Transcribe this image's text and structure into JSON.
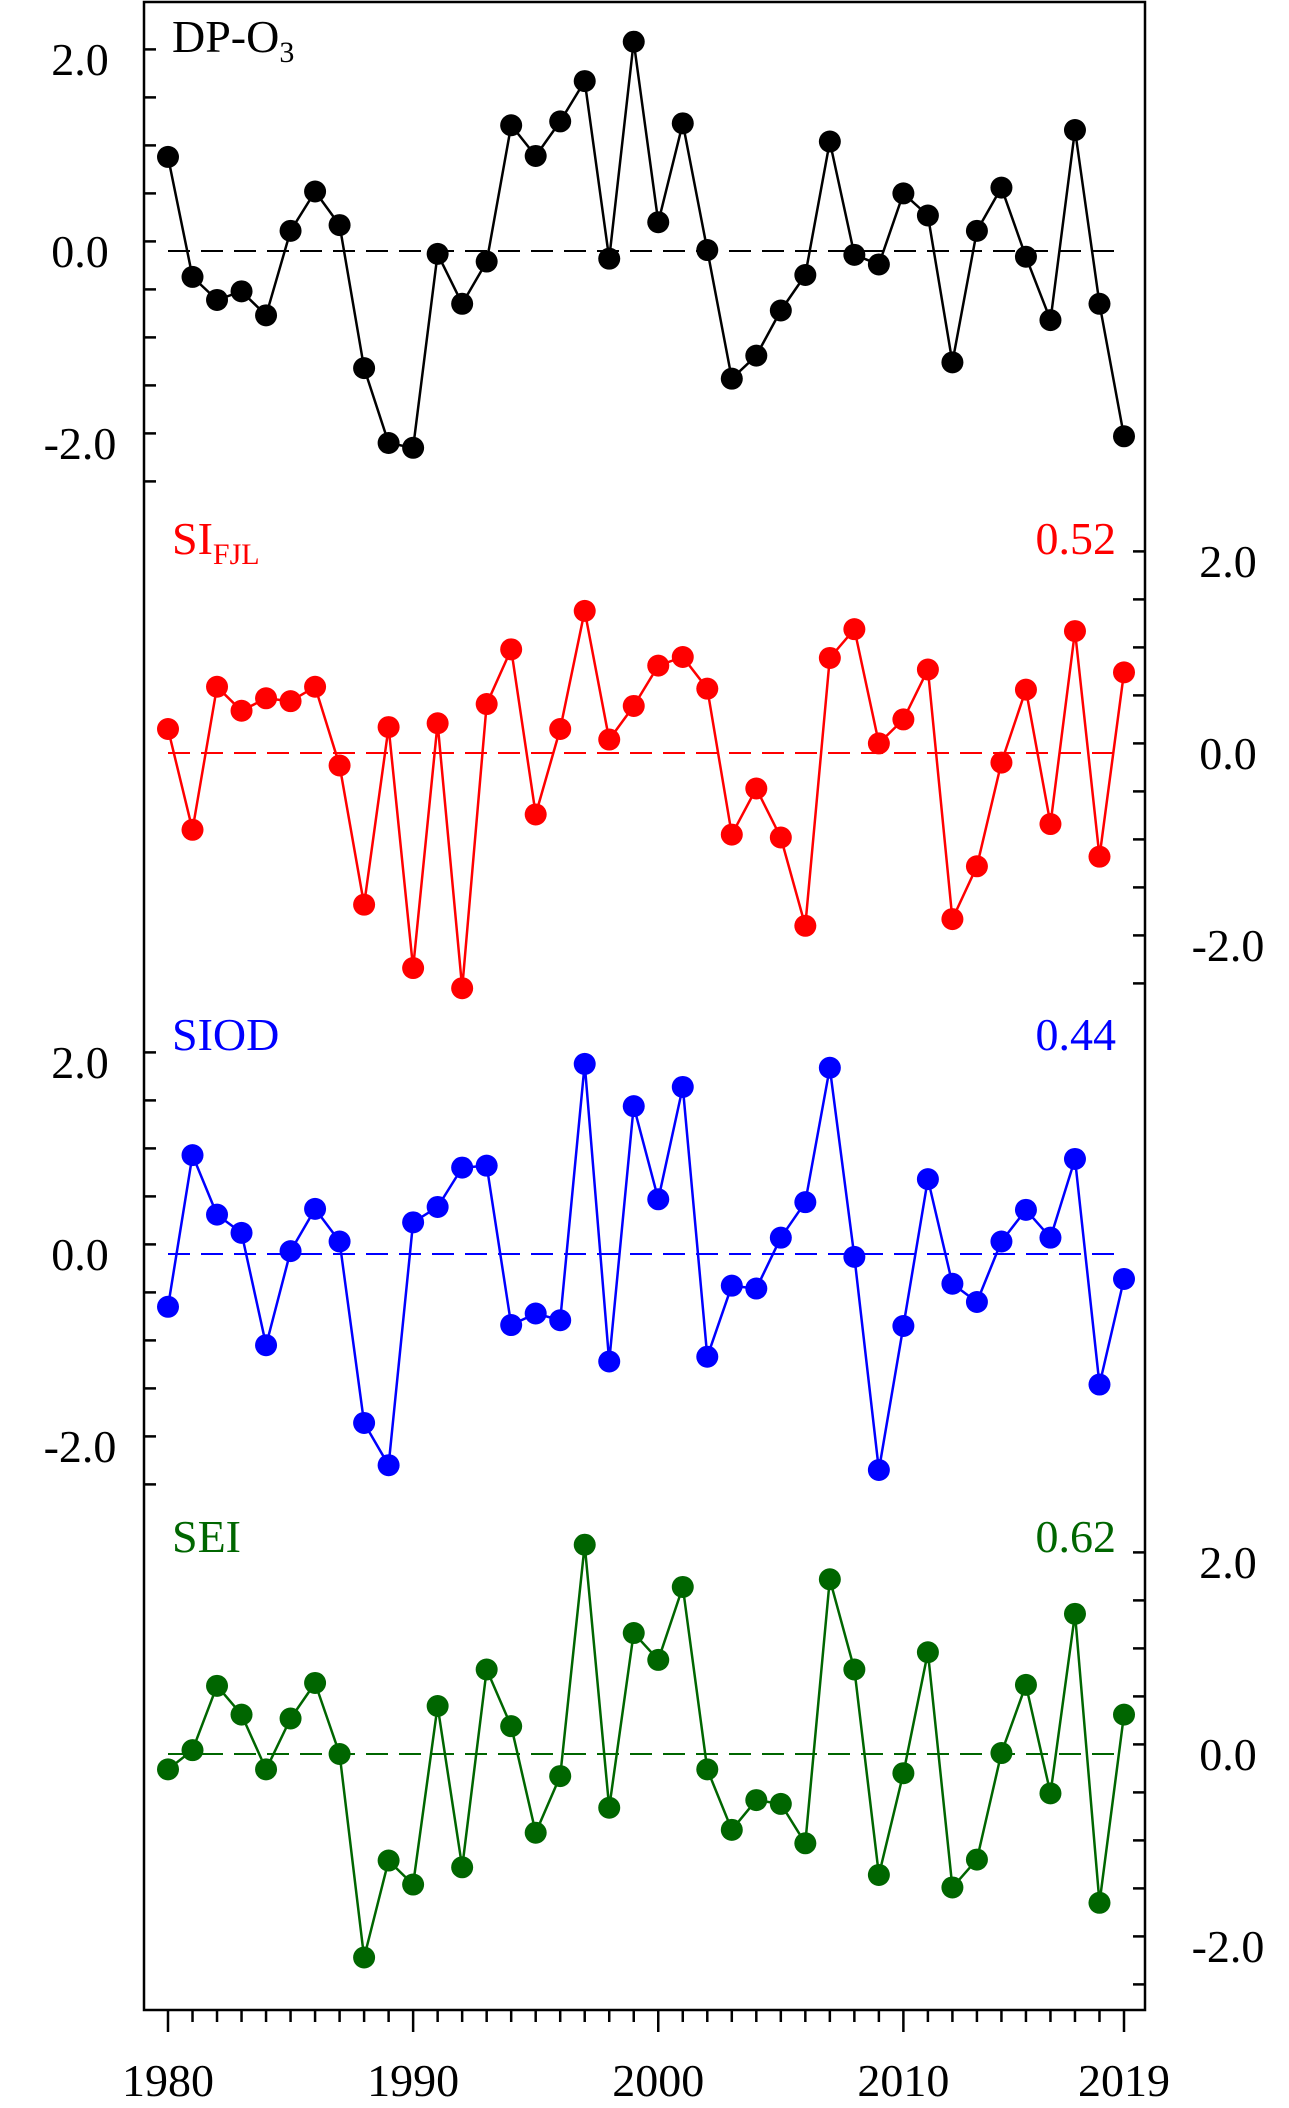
{
  "chart_data": {
    "type": "line",
    "x": [
      1980,
      1981,
      1982,
      1983,
      1984,
      1985,
      1986,
      1987,
      1988,
      1989,
      1990,
      1991,
      1992,
      1993,
      1994,
      1995,
      1996,
      1997,
      1998,
      1999,
      2000,
      2001,
      2002,
      2003,
      2004,
      2005,
      2006,
      2007,
      2008,
      2009,
      2010,
      2011,
      2012,
      2013,
      2014,
      2015,
      2016,
      2017,
      2018,
      2019
    ],
    "xlim": [
      1980,
      2019
    ],
    "xticks": [
      1980,
      1990,
      2000,
      2010,
      2019
    ],
    "xtick_labels": [
      "1980",
      "1990",
      "2000",
      "2010",
      "2019"
    ],
    "grid": false,
    "legend": "none",
    "series": [
      {
        "name": "DP-O",
        "name_subscript": "3",
        "color": "#000000",
        "axis_side": "left",
        "ylim": [
          -2.4,
          2.4
        ],
        "yticks": [
          2.0,
          0.0,
          -2.0
        ],
        "ytick_labels": [
          "2.0",
          "0.0",
          "-2.0"
        ],
        "correlation": "",
        "values": [
          0.98,
          -0.27,
          -0.51,
          -0.42,
          -0.67,
          0.21,
          0.62,
          0.27,
          -1.22,
          -2.0,
          -2.05,
          -0.03,
          -0.55,
          -0.11,
          1.31,
          0.99,
          1.35,
          1.77,
          -0.08,
          2.18,
          0.3,
          1.33,
          0.01,
          -1.33,
          -1.09,
          -0.62,
          -0.25,
          1.14,
          -0.04,
          -0.14,
          0.6,
          0.37,
          -1.16,
          0.21,
          0.66,
          -0.06,
          -0.72,
          1.26,
          -0.55,
          -1.93
        ]
      },
      {
        "name": "SI",
        "name_subscript": "FJL",
        "color": "#ff0000",
        "axis_side": "right",
        "ylim": [
          -2.4,
          2.4
        ],
        "yticks": [
          2.0,
          0.0,
          -2.0
        ],
        "ytick_labels": [
          "2.0",
          "0.0",
          "-2.0"
        ],
        "correlation": "0.52",
        "values": [
          0.25,
          -0.8,
          0.69,
          0.44,
          0.57,
          0.54,
          0.69,
          -0.13,
          -1.58,
          0.27,
          -2.24,
          0.31,
          -2.45,
          0.51,
          1.08,
          -0.64,
          0.25,
          1.48,
          0.14,
          0.49,
          0.91,
          1.0,
          0.67,
          -0.85,
          -0.37,
          -0.88,
          -1.8,
          0.99,
          1.29,
          0.1,
          0.35,
          0.87,
          -1.73,
          -1.18,
          -0.1,
          0.66,
          -0.74,
          1.27,
          -1.08,
          0.84
        ]
      },
      {
        "name": "SIOD",
        "name_subscript": "",
        "color": "#0000ff",
        "axis_side": "left",
        "ylim": [
          -2.4,
          2.4
        ],
        "yticks": [
          2.0,
          0.0,
          -2.0
        ],
        "ytick_labels": [
          "2.0",
          "0.0",
          "-2.0"
        ],
        "correlation": "0.44",
        "values": [
          -0.55,
          1.03,
          0.41,
          0.22,
          -0.95,
          0.03,
          0.47,
          0.13,
          -1.76,
          -2.2,
          0.33,
          0.49,
          0.9,
          0.92,
          -0.74,
          -0.62,
          -0.69,
          1.98,
          -1.12,
          1.54,
          0.57,
          1.74,
          -1.07,
          -0.33,
          -0.36,
          0.17,
          0.54,
          1.94,
          -0.03,
          -2.25,
          -0.75,
          0.78,
          -0.31,
          -0.5,
          0.13,
          0.46,
          0.17,
          0.99,
          -1.36,
          -0.26
        ]
      },
      {
        "name": "SEI",
        "name_subscript": "",
        "color": "#006600",
        "axis_side": "right",
        "ylim": [
          -2.4,
          2.4
        ],
        "yticks": [
          2.0,
          0.0,
          -2.0
        ],
        "ytick_labels": [
          "2.0",
          "0.0",
          "-2.0"
        ],
        "correlation": "0.62",
        "values": [
          -0.16,
          0.04,
          0.71,
          0.41,
          -0.16,
          0.37,
          0.74,
          0.0,
          -2.12,
          -1.11,
          -1.36,
          0.5,
          -1.18,
          0.88,
          0.29,
          -0.82,
          -0.23,
          2.18,
          -0.56,
          1.26,
          0.98,
          1.74,
          -0.16,
          -0.79,
          -0.48,
          -0.52,
          -0.93,
          1.82,
          0.88,
          -1.26,
          -0.2,
          1.06,
          -1.39,
          -1.1,
          0.01,
          0.72,
          -0.41,
          1.46,
          -1.55,
          0.41
        ]
      }
    ]
  }
}
